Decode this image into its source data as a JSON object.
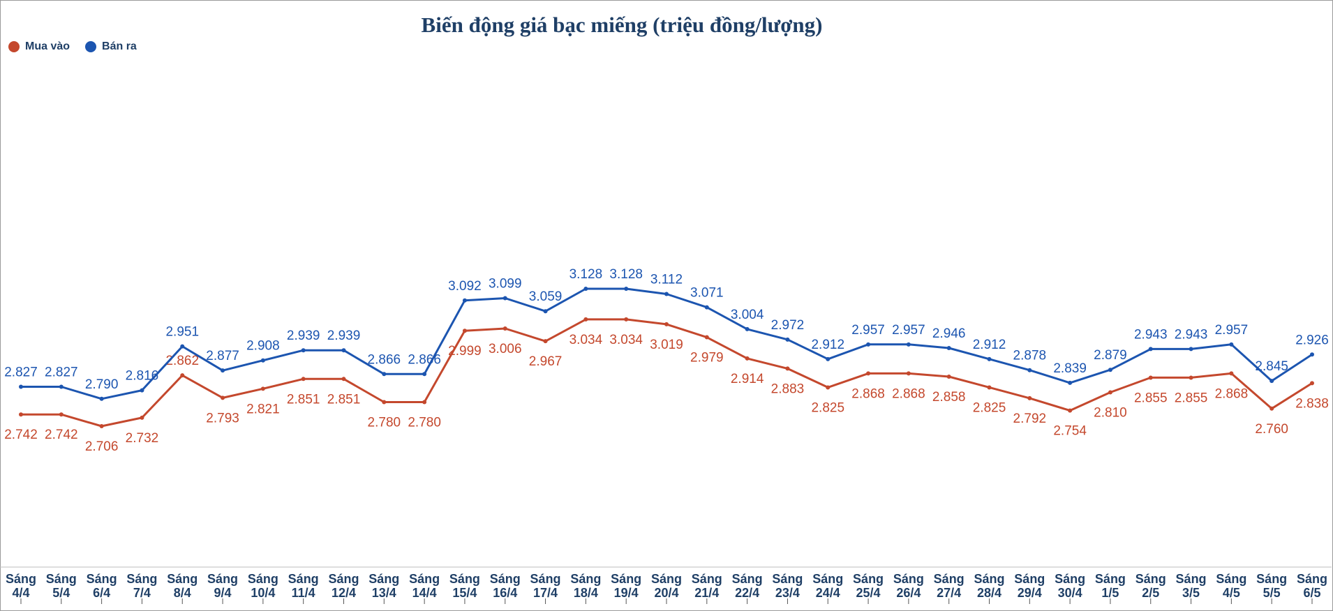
{
  "chart_data": {
    "type": "line",
    "title": "Biến động giá bạc miếng (triệu đồng/lượng)",
    "legend_position": "top-left",
    "grid": false,
    "categories": [
      [
        "Sáng",
        "4/4"
      ],
      [
        "Sáng",
        "5/4"
      ],
      [
        "Sáng",
        "6/4"
      ],
      [
        "Sáng",
        "7/4"
      ],
      [
        "Sáng",
        "8/4"
      ],
      [
        "Sáng",
        "9/4"
      ],
      [
        "Sáng",
        "10/4"
      ],
      [
        "Sáng",
        "11/4"
      ],
      [
        "Sáng",
        "12/4"
      ],
      [
        "Sáng",
        "13/4"
      ],
      [
        "Sáng",
        "14/4"
      ],
      [
        "Sáng",
        "15/4"
      ],
      [
        "Sáng",
        "16/4"
      ],
      [
        "Sáng",
        "17/4"
      ],
      [
        "Sáng",
        "18/4"
      ],
      [
        "Sáng",
        "19/4"
      ],
      [
        "Sáng",
        "20/4"
      ],
      [
        "Sáng",
        "21/4"
      ],
      [
        "Sáng",
        "22/4"
      ],
      [
        "Sáng",
        "23/4"
      ],
      [
        "Sáng",
        "24/4"
      ],
      [
        "Sáng",
        "25/4"
      ],
      [
        "Sáng",
        "26/4"
      ],
      [
        "Sáng",
        "27/4"
      ],
      [
        "Sáng",
        "28/4"
      ],
      [
        "Sáng",
        "29/4"
      ],
      [
        "Sáng",
        "30/4"
      ],
      [
        "Sáng",
        "1/5"
      ],
      [
        "Sáng",
        "2/5"
      ],
      [
        "Sáng",
        "3/5"
      ],
      [
        "Sáng",
        "4/5"
      ],
      [
        "Sáng",
        "5/5"
      ],
      [
        "Sáng",
        "6/5"
      ]
    ],
    "series": [
      {
        "name": "Mua vào",
        "color": "#c4482d",
        "values": [
          2.742,
          2.742,
          2.706,
          2.732,
          2.862,
          2.793,
          2.821,
          2.851,
          2.851,
          2.78,
          2.78,
          2.999,
          3.006,
          2.967,
          3.034,
          3.034,
          3.019,
          2.979,
          2.914,
          2.883,
          2.825,
          2.868,
          2.868,
          2.858,
          2.825,
          2.792,
          2.754,
          2.81,
          2.855,
          2.855,
          2.868,
          2.76,
          2.838
        ],
        "labels": [
          "2.742",
          "2.742",
          "2.706",
          "2.732",
          "2.862",
          "2.793",
          "2.821",
          "2.851",
          "2.851",
          "2.780",
          "2.780",
          "2.999",
          "3.006",
          "2.967",
          "3.034",
          "3.034",
          "3.019",
          "2.979",
          "2.914",
          "2.883",
          "2.825",
          "2.868",
          "2.868",
          "2.858",
          "2.825",
          "2.792",
          "2.754",
          "2.810",
          "2.855",
          "2.855",
          "2.868",
          "2.760",
          "2.838"
        ]
      },
      {
        "name": "Bán ra",
        "color": "#1c55b0",
        "values": [
          2.827,
          2.827,
          2.79,
          2.816,
          2.951,
          2.877,
          2.908,
          2.939,
          2.939,
          2.866,
          2.866,
          3.092,
          3.099,
          3.059,
          3.128,
          3.128,
          3.112,
          3.071,
          3.004,
          2.972,
          2.912,
          2.957,
          2.957,
          2.946,
          2.912,
          2.878,
          2.839,
          2.879,
          2.943,
          2.943,
          2.957,
          2.845,
          2.926
        ],
        "labels": [
          "2.827",
          "2.827",
          "2.790",
          "2.816",
          "2.951",
          "2.877",
          "2.908",
          "2.939",
          "2.939",
          "2.866",
          "2.866",
          "3.092",
          "3.099",
          "3.059",
          "3.128",
          "3.128",
          "3.112",
          "3.071",
          "3.004",
          "2.972",
          "2.912",
          "2.957",
          "2.957",
          "2.946",
          "2.912",
          "2.878",
          "2.839",
          "2.879",
          "2.943",
          "2.943",
          "2.957",
          "2.845",
          "2.926"
        ]
      }
    ],
    "label_positions": {
      "Mua vào": [
        "below",
        "below",
        "below",
        "below",
        "above",
        "below",
        "below",
        "below",
        "below",
        "below",
        "below",
        "below",
        "below",
        "below",
        "below",
        "below",
        "below",
        "below",
        "below",
        "below",
        "below",
        "below",
        "below",
        "below",
        "below",
        "below",
        "below",
        "below",
        "below",
        "below",
        "below",
        "below",
        "below"
      ],
      "Bán ra": [
        "above",
        "above",
        "above",
        "above",
        "above",
        "above",
        "above",
        "above",
        "above",
        "above",
        "above",
        "above",
        "above",
        "above",
        "above",
        "above",
        "above",
        "above",
        "above",
        "above",
        "above",
        "above",
        "above",
        "above",
        "above",
        "above",
        "above",
        "above",
        "above",
        "above",
        "above",
        "above",
        "above"
      ]
    }
  }
}
